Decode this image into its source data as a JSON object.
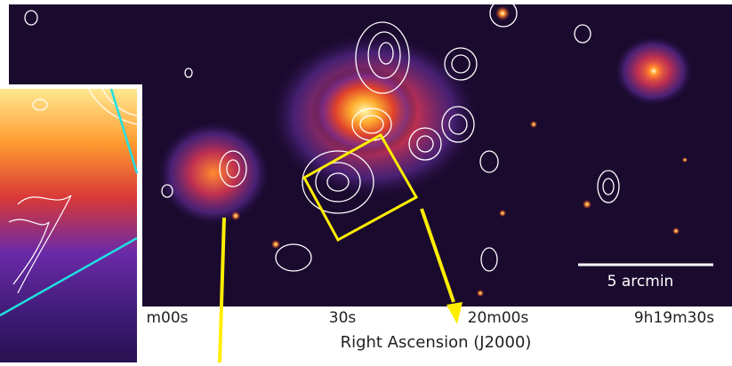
{
  "figure": {
    "x_tick_labels": [
      "m00s",
      "30s",
      "20m00s",
      "9h19m30s"
    ],
    "x_axis_label": "Right Ascension (J2000)",
    "scale_bar_label": "5 arcmin"
  }
}
